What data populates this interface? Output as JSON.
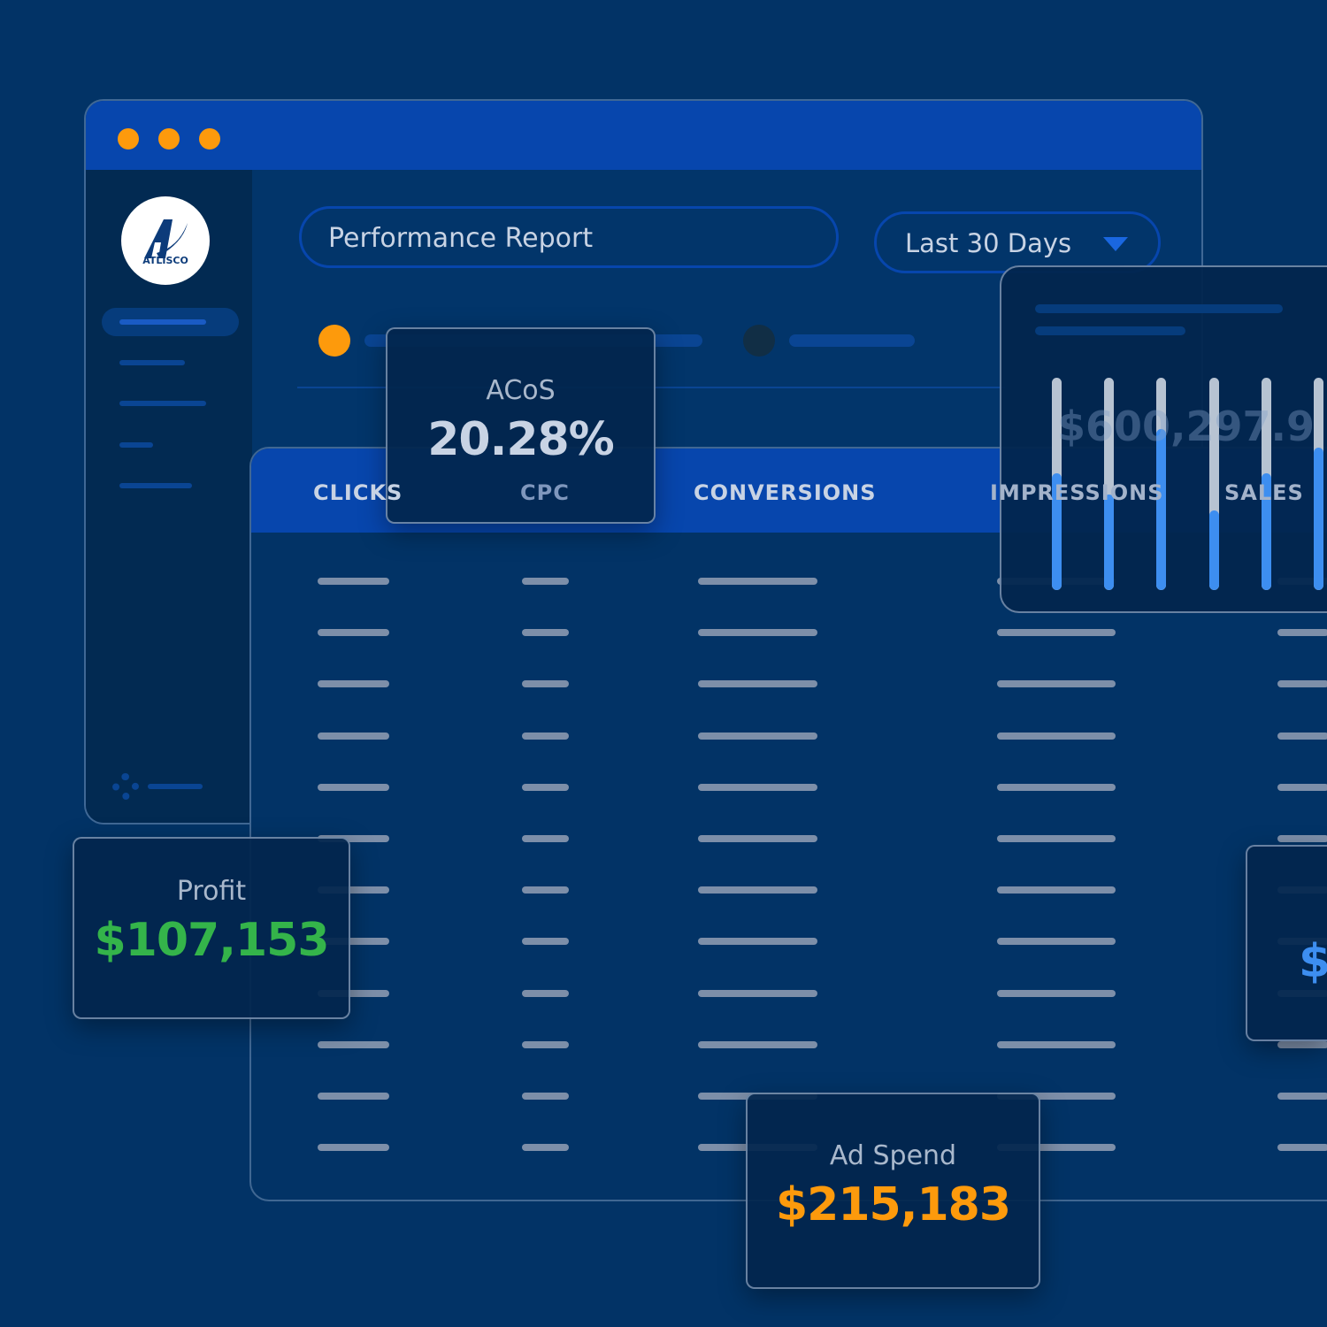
{
  "window": {
    "traffic_light_color": "#fd9a0c"
  },
  "logo": {
    "text": "ATLISCO"
  },
  "header": {
    "report_title": "Performance Report",
    "date_range": "Last 30 Days"
  },
  "legend": {
    "colors": [
      "#fd9a0c",
      "#3d8ef0",
      "#112e45"
    ]
  },
  "table": {
    "columns": [
      "CLICKS",
      "CPC",
      "CONVERSIONS",
      "IMPRESSIONS",
      "SALES"
    ],
    "background_value": "$600,297.9"
  },
  "cards": {
    "acos": {
      "label": "ACoS",
      "value": "20.28%"
    },
    "profit": {
      "label": "Profit",
      "value": "$107,153",
      "color": "#34b44a"
    },
    "ad_spend": {
      "label": "Ad Spend",
      "value": "$215,183",
      "color": "#fd9a0c"
    },
    "sales_partial": {
      "value": "$",
      "color": "#3d8ef0"
    }
  },
  "chart_data": {
    "type": "bar",
    "values": [
      0.55,
      0.45,
      0.76,
      0.375,
      0.55,
      0.67
    ],
    "ylim": [
      0,
      1
    ],
    "fill_color": "#3d8ef0",
    "track_color": "#b7c3d2"
  }
}
